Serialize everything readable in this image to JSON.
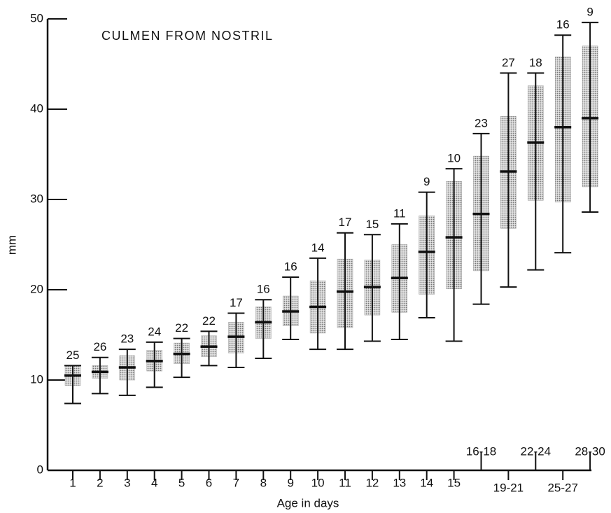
{
  "chart_data": {
    "type": "range-box",
    "title": "CULMEN FROM NOSTRIL",
    "x_label": "Age in days",
    "y_label": "mm",
    "categories": [
      "1",
      "2",
      "3",
      "4",
      "5",
      "6",
      "7",
      "8",
      "9",
      "10",
      "11",
      "12",
      "13",
      "14",
      "15",
      "16-18",
      "19-21",
      "22-24",
      "25-27",
      "28-30"
    ],
    "n": [
      25,
      26,
      23,
      24,
      22,
      22,
      17,
      16,
      16,
      14,
      17,
      15,
      11,
      9,
      10,
      23,
      27,
      18,
      16,
      9
    ],
    "mean": [
      10.5,
      10.9,
      11.4,
      12.1,
      12.9,
      13.7,
      14.8,
      16.4,
      17.6,
      18.1,
      19.8,
      20.3,
      21.3,
      24.2,
      25.8,
      28.4,
      33.1,
      36.3,
      38.0,
      39.0
    ],
    "min": [
      7.4,
      8.5,
      8.3,
      9.2,
      10.3,
      11.6,
      11.4,
      12.4,
      14.5,
      13.4,
      13.4,
      14.3,
      14.5,
      16.9,
      14.3,
      18.4,
      20.3,
      22.2,
      24.1,
      28.6
    ],
    "max": [
      11.6,
      12.5,
      13.4,
      14.2,
      14.6,
      15.4,
      17.4,
      18.9,
      21.4,
      23.5,
      26.3,
      26.1,
      27.3,
      30.8,
      33.4,
      37.3,
      44.0,
      44.0,
      48.2,
      49.6
    ],
    "box_low": [
      9.4,
      10.2,
      10.0,
      11.0,
      11.8,
      12.6,
      13.0,
      14.6,
      16.0,
      15.2,
      15.8,
      17.2,
      17.5,
      19.5,
      20.1,
      22.1,
      26.8,
      29.9,
      29.7,
      31.4
    ],
    "box_high": [
      11.6,
      11.6,
      12.7,
      13.3,
      14.1,
      14.9,
      16.4,
      18.1,
      19.3,
      21.0,
      23.4,
      23.3,
      25.0,
      28.2,
      32.0,
      34.8,
      39.2,
      42.6,
      45.8,
      47.0
    ],
    "color": "#111111",
    "box_color": "#9a9a9a",
    "ylim": [
      0,
      50
    ],
    "yticks": [
      0,
      10,
      20,
      30,
      40,
      50
    ]
  }
}
